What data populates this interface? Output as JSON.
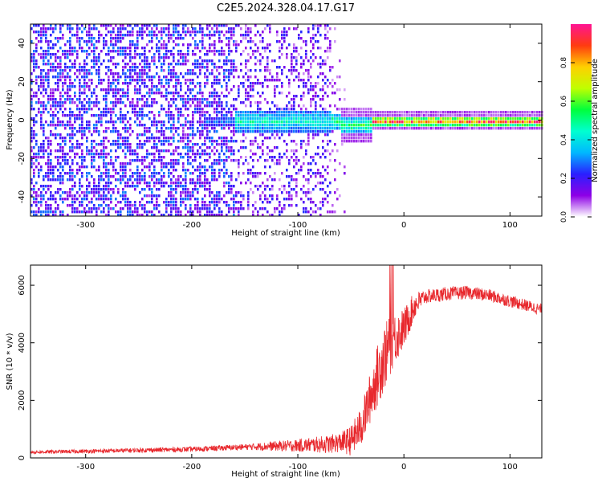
{
  "title": "C2E5.2024.328.04.17.G17",
  "chart_data": [
    {
      "type": "heatmap",
      "xlabel": "Height of straight line (km)",
      "ylabel": "Frequency (Hz)",
      "xlim": [
        -352,
        130
      ],
      "ylim": [
        -50,
        50
      ],
      "x_ticks": [
        -300,
        -200,
        -100,
        0,
        100
      ],
      "y_ticks": [
        -40,
        -20,
        0,
        20,
        40
      ],
      "colorbar": {
        "label": "Normalized spectral amplitude",
        "range": [
          0.0,
          1.0
        ],
        "ticks": [
          "0.0",
          "0.2",
          "0.4",
          "0.6",
          "0.8"
        ],
        "colormap": [
          "#ffffff",
          "#8e00e6",
          "#2a1fff",
          "#00b8ff",
          "#00ffd0",
          "#00ff3c",
          "#bfff00",
          "#ffd000",
          "#ff3b10",
          "#ff1493"
        ]
      },
      "segments": [
        {
          "x_range": [
            -352,
            -160
          ],
          "description_level": 0.28,
          "freq_spread": 50
        },
        {
          "x_range": [
            -160,
            -70
          ],
          "description_level": 0.22,
          "freq_spread": 50
        },
        {
          "x_range": [
            -70,
            -30
          ],
          "description_level": 0.55,
          "freq_center": -2,
          "freq_width": 4
        },
        {
          "x_range": [
            -30,
            130
          ],
          "description_level": 0.95,
          "freq_center": 0,
          "freq_width": 1.5
        }
      ],
      "grid": false
    },
    {
      "type": "line",
      "xlabel": "Height of straight line (km)",
      "ylabel": "SNR (10 * v/v)",
      "xlim": [
        -352,
        130
      ],
      "ylim": [
        0,
        6700
      ],
      "x_ticks": [
        -300,
        -200,
        -100,
        0,
        100
      ],
      "y_ticks": [
        0,
        2000,
        4000,
        6000
      ],
      "series_color": "#e8282d",
      "trend": {
        "x": [
          -352,
          -300,
          -200,
          -150,
          -100,
          -70,
          -50,
          -40,
          -30,
          -20,
          -10,
          0,
          10,
          20,
          40,
          60,
          80,
          100,
          130
        ],
        "y": [
          200,
          230,
          300,
          380,
          430,
          480,
          600,
          1100,
          2300,
          3400,
          4100,
          4500,
          5300,
          5600,
          5700,
          5750,
          5650,
          5450,
          5150
        ]
      },
      "noise_amplitude": {
        "x": [
          -352,
          -150,
          -100,
          -60,
          -40,
          -20,
          0,
          20,
          130
        ],
        "y": [
          60,
          100,
          220,
          350,
          700,
          1200,
          700,
          250,
          200
        ]
      },
      "grid": false
    }
  ]
}
